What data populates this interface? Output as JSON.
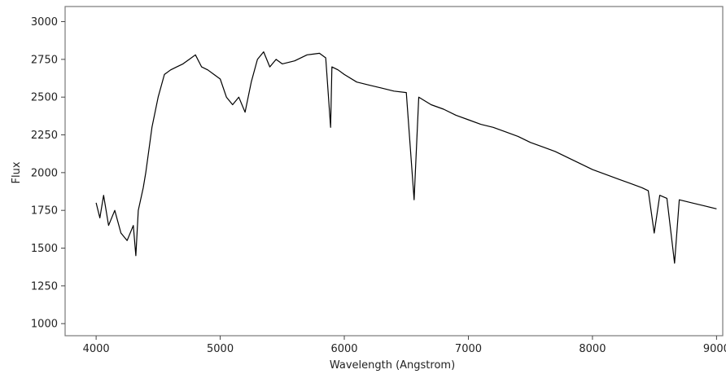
{
  "chart_data": {
    "type": "line",
    "title": "",
    "xlabel": "Wavelength (Angstrom)",
    "ylabel": "Flux",
    "xlim": [
      3750,
      9050
    ],
    "ylim": [
      920,
      3100
    ],
    "xticks": [
      4000,
      5000,
      6000,
      7000,
      8000,
      9000
    ],
    "yticks": [
      1000,
      1250,
      1500,
      1750,
      2000,
      2250,
      2500,
      2750,
      3000
    ],
    "grid": false,
    "line_color": "#000000",
    "series": [
      {
        "x": [
          4000,
          4030,
          4060,
          4100,
          4150,
          4200,
          4250,
          4300,
          4320,
          4340,
          4380,
          4400,
          4450,
          4500,
          4550,
          4600,
          4650,
          4700,
          4750,
          4800,
          4850,
          4900,
          4950,
          5000,
          5050,
          5100,
          5150,
          5200,
          5250,
          5300,
          5350,
          5400,
          5450,
          5500,
          5600,
          5700,
          5800,
          5850,
          5890,
          5900,
          5950,
          6000,
          6100,
          6200,
          6300,
          6400,
          6500,
          6563,
          6600,
          6700,
          6800,
          6900,
          7000,
          7100,
          7200,
          7300,
          7400,
          7500,
          7600,
          7700,
          7800,
          7900,
          8000,
          8100,
          8200,
          8300,
          8400,
          8450,
          8498,
          8542,
          8600,
          8662,
          8700,
          8800,
          8900,
          9000
        ],
        "y": [
          1800,
          1700,
          1850,
          1650,
          1750,
          1600,
          1550,
          1650,
          1450,
          1750,
          1900,
          2000,
          2300,
          2500,
          2650,
          2680,
          2700,
          2720,
          2750,
          2780,
          2700,
          2680,
          2650,
          2620,
          2500,
          2450,
          2500,
          2400,
          2600,
          2750,
          2800,
          2700,
          2750,
          2720,
          2740,
          2780,
          2790,
          2760,
          2300,
          2700,
          2680,
          2650,
          2600,
          2580,
          2560,
          2540,
          2530,
          1820,
          2500,
          2450,
          2420,
          2380,
          2350,
          2320,
          2300,
          2270,
          2240,
          2200,
          2170,
          2140,
          2100,
          2060,
          2020,
          1990,
          1960,
          1930,
          1900,
          1880,
          1600,
          1850,
          1830,
          1400,
          1820,
          1800,
          1780,
          1760
        ]
      }
    ]
  }
}
